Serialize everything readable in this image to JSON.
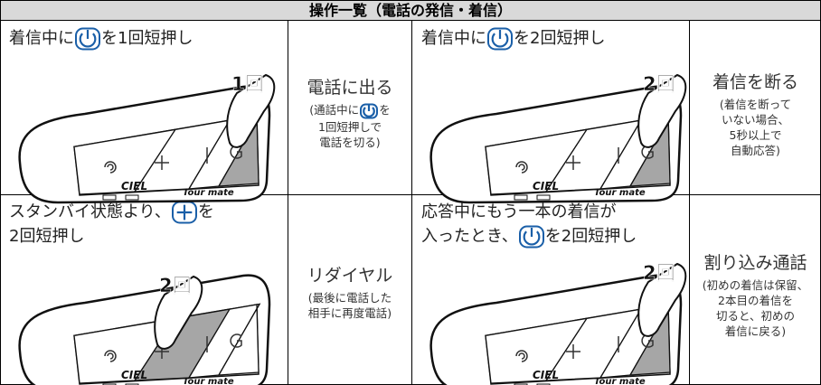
{
  "header": {
    "title": "操作一覧（電話の発信・着信）"
  },
  "device": {
    "brand": "CIEL",
    "model": "Tour mate"
  },
  "cells": [
    {
      "instruction": [
        "着信中に",
        "を1回短押し"
      ],
      "badge": "1回",
      "result": "電話に出る",
      "note": [
        "(通話中に",
        "を",
        "1回短押しで",
        "電話を切る)"
      ]
    },
    {
      "instruction": [
        "着信中に",
        "を2回短押し"
      ],
      "badge": "2回",
      "result": "着信を断る",
      "note": [
        "(着信を断って",
        "いない場合、",
        "5秒以上で",
        "自動応答)"
      ]
    },
    {
      "instruction": [
        "スタンバイ状態より、",
        "を",
        "2回短押し"
      ],
      "badge": "2回",
      "result": "リダイヤル",
      "note": [
        "(最後に電話した",
        "相手に再度電話)"
      ]
    },
    {
      "instruction": [
        "応答中にもう一本の着信が",
        "入ったとき、",
        "を2回短押し"
      ],
      "badge": "2回",
      "result": "割り込み通話",
      "note": [
        "(初めの着信は保留、",
        "2本目の着信を",
        "切ると、初めの",
        "着信に戻る)"
      ]
    }
  ]
}
